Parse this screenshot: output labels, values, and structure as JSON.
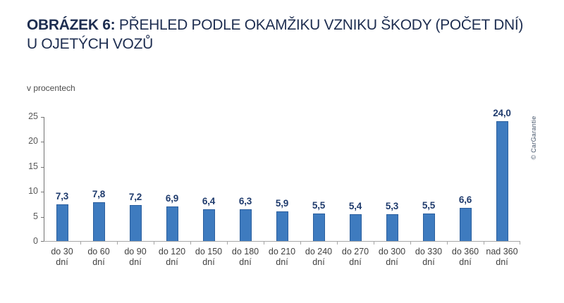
{
  "header": {
    "title_prefix": "OBRÁZEK 6:",
    "title_line1_rest": " PŘEHLED PODLE OKAMŽIKU VZNIKU ŠKODY (POČET DNÍ)",
    "title_line2": "U OJETÝCH VOZŮ"
  },
  "chart_data": {
    "type": "bar",
    "title": "OBRÁZEK 6: PŘEHLED PODLE OKAMŽIKU VZNIKU ŠKODY (POČET DNÍ) U OJETÝCH VOZŮ",
    "ylabel": "v procentech",
    "xlabel": "",
    "categories": [
      "do 30 dní",
      "do 60 dní",
      "do 90 dní",
      "do 120 dní",
      "do 150 dní",
      "do 180 dní",
      "do 210 dní",
      "do 240 dní",
      "do 270 dní",
      "do 300 dní",
      "do 330 dní",
      "do 360 dní",
      "nad 360 dní"
    ],
    "values": [
      7.3,
      7.8,
      7.2,
      6.9,
      6.4,
      6.3,
      5.9,
      5.5,
      5.4,
      5.3,
      5.5,
      6.6,
      24.0
    ],
    "value_labels": [
      "7,3",
      "7,8",
      "7,2",
      "6,9",
      "6,4",
      "6,3",
      "5,9",
      "5,5",
      "5,4",
      "5,3",
      "5,5",
      "6,6",
      "24,0"
    ],
    "ylim": [
      0,
      25
    ],
    "yticks": [
      0,
      5,
      10,
      15,
      20,
      25
    ],
    "grid": false,
    "legend": "none",
    "bar_color": "#3e7bbf",
    "bar_border_color": "#2b5f9e",
    "value_label_color": "#1f3b6d"
  },
  "annotations": {
    "copyright": "© CarGarantie"
  },
  "colors": {
    "title_text": "#1d2d50",
    "axis_tick_text": "#595959",
    "category_text": "#404040"
  }
}
